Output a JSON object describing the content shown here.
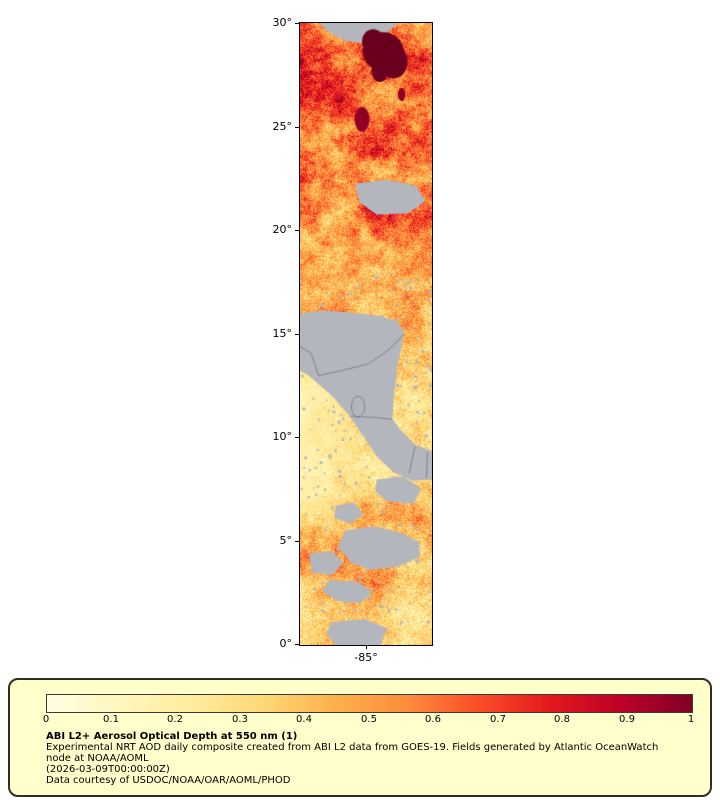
{
  "map": {
    "y_tick_labels": [
      "30°",
      "25°",
      "20°",
      "15°",
      "10°",
      "5°",
      "0°"
    ],
    "x_tick_label": "-85°",
    "lat_range": [
      0,
      30
    ],
    "no_data_color": "#b3b7bd",
    "border_line_color": "#70757d",
    "dark_blob_color": "#68001e",
    "dark_blob_color2": "#900026",
    "colormap": [
      "#ffffe5",
      "#fff7bc",
      "#ffeda0",
      "#fed976",
      "#feb24c",
      "#fd8d3c",
      "#fc4e2a",
      "#e31a1c",
      "#bd0026",
      "#800026"
    ],
    "lat_profile": [
      [
        0,
        0.52
      ],
      [
        0.05,
        0.6
      ],
      [
        0.12,
        0.56
      ],
      [
        0.2,
        0.62
      ],
      [
        0.3,
        0.56
      ],
      [
        0.4,
        0.46
      ],
      [
        0.5,
        0.4
      ],
      [
        0.62,
        0.34
      ],
      [
        0.72,
        0.32
      ],
      [
        0.79,
        0.46
      ],
      [
        0.88,
        0.44
      ],
      [
        0.94,
        0.3
      ],
      [
        1,
        0.32
      ]
    ],
    "features": {
      "land_polys": [
        [
          [
            0.15,
            0
          ],
          [
            0.74,
            0
          ],
          [
            0.68,
            0.012
          ],
          [
            0.52,
            0.034
          ],
          [
            0.33,
            0.028
          ],
          [
            0.2,
            0.012
          ]
        ],
        [
          [
            0.42,
            0.258
          ],
          [
            0.66,
            0.252
          ],
          [
            0.88,
            0.262
          ],
          [
            0.95,
            0.286
          ],
          [
            0.82,
            0.306
          ],
          [
            0.58,
            0.308
          ],
          [
            0.45,
            0.288
          ]
        ],
        [
          [
            0,
            0.467
          ],
          [
            0.18,
            0.462
          ],
          [
            0.38,
            0.466
          ],
          [
            0.58,
            0.47
          ],
          [
            0.74,
            0.479
          ],
          [
            0.79,
            0.498
          ],
          [
            0.745,
            0.545
          ],
          [
            0.715,
            0.59
          ],
          [
            0.7,
            0.636
          ],
          [
            0.76,
            0.654
          ],
          [
            0.875,
            0.678
          ],
          [
            1,
            0.688
          ],
          [
            1,
            0.734
          ],
          [
            0.85,
            0.736
          ],
          [
            0.7,
            0.721
          ],
          [
            0.58,
            0.696
          ],
          [
            0.47,
            0.661
          ],
          [
            0.36,
            0.628
          ],
          [
            0.25,
            0.601
          ],
          [
            0.155,
            0.583
          ],
          [
            0.06,
            0.566
          ],
          [
            0,
            0.559
          ]
        ],
        [
          [
            0.58,
            0.734
          ],
          [
            0.78,
            0.729
          ],
          [
            0.92,
            0.748
          ],
          [
            0.86,
            0.773
          ],
          [
            0.66,
            0.769
          ],
          [
            0.57,
            0.753
          ]
        ],
        [
          [
            0.34,
            0.816
          ],
          [
            0.55,
            0.809
          ],
          [
            0.76,
            0.819
          ],
          [
            0.9,
            0.834
          ],
          [
            0.91,
            0.858
          ],
          [
            0.74,
            0.874
          ],
          [
            0.54,
            0.879
          ],
          [
            0.39,
            0.868
          ],
          [
            0.29,
            0.843
          ]
        ],
        [
          [
            0.07,
            0.853
          ],
          [
            0.24,
            0.849
          ],
          [
            0.33,
            0.868
          ],
          [
            0.24,
            0.888
          ],
          [
            0.09,
            0.884
          ]
        ],
        [
          [
            0.22,
            0.895
          ],
          [
            0.44,
            0.899
          ],
          [
            0.55,
            0.914
          ],
          [
            0.46,
            0.933
          ],
          [
            0.28,
            0.929
          ],
          [
            0.17,
            0.913
          ]
        ],
        [
          [
            0.24,
            0.963
          ],
          [
            0.49,
            0.958
          ],
          [
            0.66,
            0.973
          ],
          [
            0.61,
            1
          ],
          [
            0.27,
            1
          ],
          [
            0.2,
            0.982
          ]
        ],
        [
          [
            0.27,
            0.776
          ],
          [
            0.41,
            0.771
          ],
          [
            0.48,
            0.79
          ],
          [
            0.38,
            0.805
          ],
          [
            0.26,
            0.796
          ]
        ]
      ],
      "borders": [
        [
          [
            0.14,
            0.567
          ],
          [
            0.33,
            0.558
          ],
          [
            0.52,
            0.548
          ],
          [
            0.68,
            0.524
          ],
          [
            0.79,
            0.5
          ]
        ],
        [
          [
            0.385,
            0.632
          ],
          [
            0.55,
            0.634
          ],
          [
            0.7,
            0.637
          ]
        ],
        [
          [
            0.828,
            0.723
          ],
          [
            0.872,
            0.68
          ]
        ],
        [
          [
            0.0,
            0.52
          ],
          [
            0.085,
            0.531
          ],
          [
            0.14,
            0.567
          ]
        ],
        [
          [
            0.965,
            0.69
          ],
          [
            0.958,
            0.732
          ]
        ]
      ],
      "lake": [
        0.44,
        0.617,
        0.05,
        0.017
      ],
      "blobs": [
        [
          0.63,
          0.046,
          0.155,
          0.031,
          0
        ],
        [
          0.71,
          0.062,
          0.105,
          0.027,
          0
        ],
        [
          0.555,
          0.03,
          0.085,
          0.02,
          0
        ],
        [
          0.605,
          0.077,
          0.065,
          0.018,
          0
        ],
        [
          0.47,
          0.155,
          0.055,
          0.02,
          1
        ],
        [
          0.77,
          0.115,
          0.028,
          0.011,
          1
        ]
      ]
    }
  },
  "legend": {
    "background": "#ffffcc",
    "ticks": [
      "0",
      "0.1",
      "0.2",
      "0.3",
      "0.4",
      "0.5",
      "0.6",
      "0.7",
      "0.8",
      "0.9",
      "1"
    ],
    "title": "ABI L2+ Aerosol Optical Depth at 550 nm (1)",
    "description": "Experimental NRT AOD daily composite created from ABI L2 data from GOES-19. Fields generated by Atlantic OceanWatch node at NOAA/AOML",
    "timestamp": "(2026-03-09T00:00:00Z)",
    "credit": "Data courtesy of USDOC/NOAA/OAR/AOML/PHOD"
  }
}
